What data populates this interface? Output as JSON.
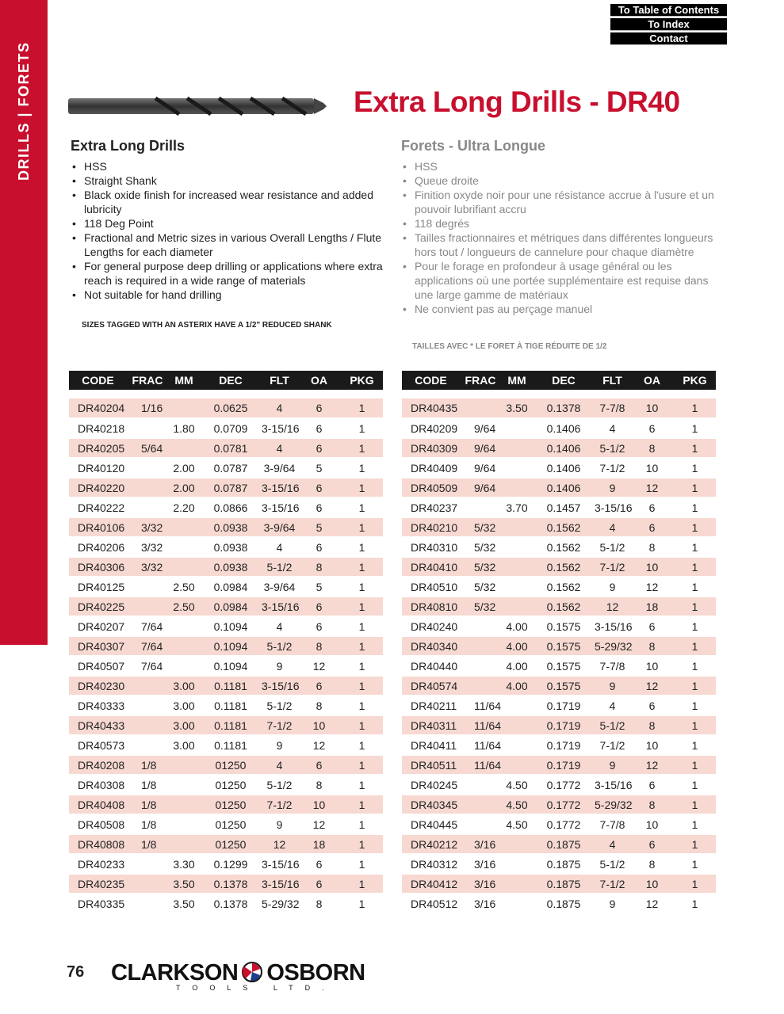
{
  "sidebar": {
    "label": "DRILLS  |  FORETS"
  },
  "nav": {
    "toc": "To Table of Contents",
    "index": "To Index",
    "contact": "Contact"
  },
  "title": "Extra Long Drills - DR40",
  "english": {
    "heading": "Extra Long Drills",
    "bullets": [
      "HSS",
      "Straight Shank",
      "Black oxide finish for increased wear resistance and added lubricity",
      "118 Deg Point",
      "Fractional and Metric sizes in various Overall Lengths / Flute Lengths for each diameter",
      "For general purpose deep drilling or applications where extra reach is required in a wide range of materials",
      "Not suitable for hand drilling"
    ],
    "note": "SIZES TAGGED WITH AN ASTERIX HAVE A 1/2\" REDUCED SHANK"
  },
  "french": {
    "heading": "Forets - Ultra Longue",
    "bullets": [
      "HSS",
      "Queue droite",
      "Finition oxyde noir pour une résistance accrue à l'usure et un pouvoir lubrifiant accru",
      "118 degrés",
      "Tailles fractionnaires et métriques dans différentes longueurs hors tout / longueurs de cannelure pour chaque diamètre",
      "Pour le forage en profondeur à usage général ou les applications où une portée supplémentaire est requise dans une large gamme de matériaux",
      "Ne convient pas au perçage manuel"
    ],
    "note": "TAILLES AVEC * LE FORET À TIGE RÉDUITE DE 1/2"
  },
  "columns": [
    "CODE",
    "FRAC",
    "MM",
    "DEC",
    "FLT",
    "OA",
    "PKG"
  ],
  "table_left": [
    [
      "DR40204",
      "1/16",
      "",
      "0.0625",
      "4",
      "6",
      "1"
    ],
    [
      "DR40218",
      "",
      "1.80",
      "0.0709",
      "3-15/16",
      "6",
      "1"
    ],
    [
      "DR40205",
      "5/64",
      "",
      "0.0781",
      "4",
      "6",
      "1"
    ],
    [
      "DR40120",
      "",
      "2.00",
      "0.0787",
      "3-9/64",
      "5",
      "1"
    ],
    [
      "DR40220",
      "",
      "2.00",
      "0.0787",
      "3-15/16",
      "6",
      "1"
    ],
    [
      "DR40222",
      "",
      "2.20",
      "0.0866",
      "3-15/16",
      "6",
      "1"
    ],
    [
      "DR40106",
      "3/32",
      "",
      "0.0938",
      "3-9/64",
      "5",
      "1"
    ],
    [
      "DR40206",
      "3/32",
      "",
      "0.0938",
      "4",
      "6",
      "1"
    ],
    [
      "DR40306",
      "3/32",
      "",
      "0.0938",
      "5-1/2",
      "8",
      "1"
    ],
    [
      "DR40125",
      "",
      "2.50",
      "0.0984",
      "3-9/64",
      "5",
      "1"
    ],
    [
      "DR40225",
      "",
      "2.50",
      "0.0984",
      "3-15/16",
      "6",
      "1"
    ],
    [
      "DR40207",
      "7/64",
      "",
      "0.1094",
      "4",
      "6",
      "1"
    ],
    [
      "DR40307",
      "7/64",
      "",
      "0.1094",
      "5-1/2",
      "8",
      "1"
    ],
    [
      "DR40507",
      "7/64",
      "",
      "0.1094",
      "9",
      "12",
      "1"
    ],
    [
      "DR40230",
      "",
      "3.00",
      "0.1181",
      "3-15/16",
      "6",
      "1"
    ],
    [
      "DR40333",
      "",
      "3.00",
      "0.1181",
      "5-1/2",
      "8",
      "1"
    ],
    [
      "DR40433",
      "",
      "3.00",
      "0.1181",
      "7-1/2",
      "10",
      "1"
    ],
    [
      "DR40573",
      "",
      "3.00",
      "0.1181",
      "9",
      "12",
      "1"
    ],
    [
      "DR40208",
      "1/8",
      "",
      "01250",
      "4",
      "6",
      "1"
    ],
    [
      "DR40308",
      "1/8",
      "",
      "01250",
      "5-1/2",
      "8",
      "1"
    ],
    [
      "DR40408",
      "1/8",
      "",
      "01250",
      "7-1/2",
      "10",
      "1"
    ],
    [
      "DR40508",
      "1/8",
      "",
      "01250",
      "9",
      "12",
      "1"
    ],
    [
      "DR40808",
      "1/8",
      "",
      "01250",
      "12",
      "18",
      "1"
    ],
    [
      "DR40233",
      "",
      "3.30",
      "0.1299",
      "3-15/16",
      "6",
      "1"
    ],
    [
      "DR40235",
      "",
      "3.50",
      "0.1378",
      "3-15/16",
      "6",
      "1"
    ],
    [
      "DR40335",
      "",
      "3.50",
      "0.1378",
      "5-29/32",
      "8",
      "1"
    ]
  ],
  "table_right": [
    [
      "DR40435",
      "",
      "3.50",
      "0.1378",
      "7-7/8",
      "10",
      "1"
    ],
    [
      "DR40209",
      "9/64",
      "",
      "0.1406",
      "4",
      "6",
      "1"
    ],
    [
      "DR40309",
      "9/64",
      "",
      "0.1406",
      "5-1/2",
      "8",
      "1"
    ],
    [
      "DR40409",
      "9/64",
      "",
      "0.1406",
      "7-1/2",
      "10",
      "1"
    ],
    [
      "DR40509",
      "9/64",
      "",
      "0.1406",
      "9",
      "12",
      "1"
    ],
    [
      "DR40237",
      "",
      "3.70",
      "0.1457",
      "3-15/16",
      "6",
      "1"
    ],
    [
      "DR40210",
      "5/32",
      "",
      "0.1562",
      "4",
      "6",
      "1"
    ],
    [
      "DR40310",
      "5/32",
      "",
      "0.1562",
      "5-1/2",
      "8",
      "1"
    ],
    [
      "DR40410",
      "5/32",
      "",
      "0.1562",
      "7-1/2",
      "10",
      "1"
    ],
    [
      "DR40510",
      "5/32",
      "",
      "0.1562",
      "9",
      "12",
      "1"
    ],
    [
      "DR40810",
      "5/32",
      "",
      "0.1562",
      "12",
      "18",
      "1"
    ],
    [
      "DR40240",
      "",
      "4.00",
      "0.1575",
      "3-15/16",
      "6",
      "1"
    ],
    [
      "DR40340",
      "",
      "4.00",
      "0.1575",
      "5-29/32",
      "8",
      "1"
    ],
    [
      "DR40440",
      "",
      "4.00",
      "0.1575",
      "7-7/8",
      "10",
      "1"
    ],
    [
      "DR40574",
      "",
      "4.00",
      "0.1575",
      "9",
      "12",
      "1"
    ],
    [
      "DR40211",
      "11/64",
      "",
      "0.1719",
      "4",
      "6",
      "1"
    ],
    [
      "DR40311",
      "11/64",
      "",
      "0.1719",
      "5-1/2",
      "8",
      "1"
    ],
    [
      "DR40411",
      "11/64",
      "",
      "0.1719",
      "7-1/2",
      "10",
      "1"
    ],
    [
      "DR40511",
      "11/64",
      "",
      "0.1719",
      "9",
      "12",
      "1"
    ],
    [
      "DR40245",
      "",
      "4.50",
      "0.1772",
      "3-15/16",
      "6",
      "1"
    ],
    [
      "DR40345",
      "",
      "4.50",
      "0.1772",
      "5-29/32",
      "8",
      "1"
    ],
    [
      "DR40445",
      "",
      "4.50",
      "0.1772",
      "7-7/8",
      "10",
      "1"
    ],
    [
      "DR40212",
      "3/16",
      "",
      "0.1875",
      "4",
      "6",
      "1"
    ],
    [
      "DR40312",
      "3/16",
      "",
      "0.1875",
      "5-1/2",
      "8",
      "1"
    ],
    [
      "DR40412",
      "3/16",
      "",
      "0.1875",
      "7-1/2",
      "10",
      "1"
    ],
    [
      "DR40512",
      "3/16",
      "",
      "0.1875",
      "9",
      "12",
      "1"
    ]
  ],
  "footer": {
    "page": "76",
    "logo": "CLARKSON OSBORN",
    "logo_sub": "TOOLS LTD."
  },
  "colors": {
    "brand": "#c8102e",
    "row_alt": "#f7d9d2"
  }
}
